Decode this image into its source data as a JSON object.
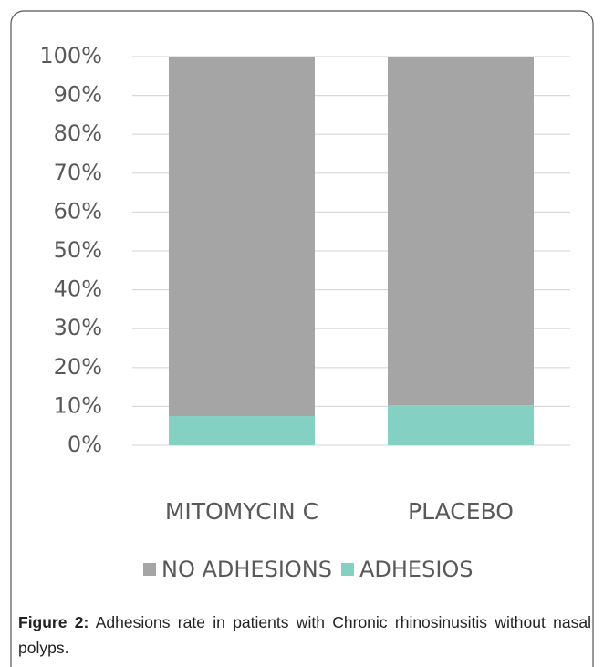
{
  "chart_data": {
    "type": "stacked_bar",
    "categories": [
      "MITOMYCIN C",
      "PLACEBO"
    ],
    "series": [
      {
        "name": "ADHESIOS",
        "color": "#84d0c3",
        "values": [
          7.5,
          10.3
        ]
      },
      {
        "name": "NO ADHESIONS",
        "color": "#a5a5a5",
        "values": [
          92.5,
          89.7
        ]
      }
    ],
    "ylim": [
      0,
      100
    ],
    "yticks": [
      {
        "value": 0,
        "label": "0%"
      },
      {
        "value": 10,
        "label": "10%"
      },
      {
        "value": 20,
        "label": "20%"
      },
      {
        "value": 30,
        "label": "30%"
      },
      {
        "value": 40,
        "label": "40%"
      },
      {
        "value": 50,
        "label": "50%"
      },
      {
        "value": 60,
        "label": "60%"
      },
      {
        "value": 70,
        "label": "70%"
      },
      {
        "value": 80,
        "label": "80%"
      },
      {
        "value": 90,
        "label": "90%"
      },
      {
        "value": 100,
        "label": "100%"
      }
    ],
    "grid": true,
    "legend": "bottom"
  },
  "caption": {
    "label": "Figure 2:",
    "text": "Adhesions rate in patients with Chronic rhinosinusitis without nasal polyps."
  }
}
